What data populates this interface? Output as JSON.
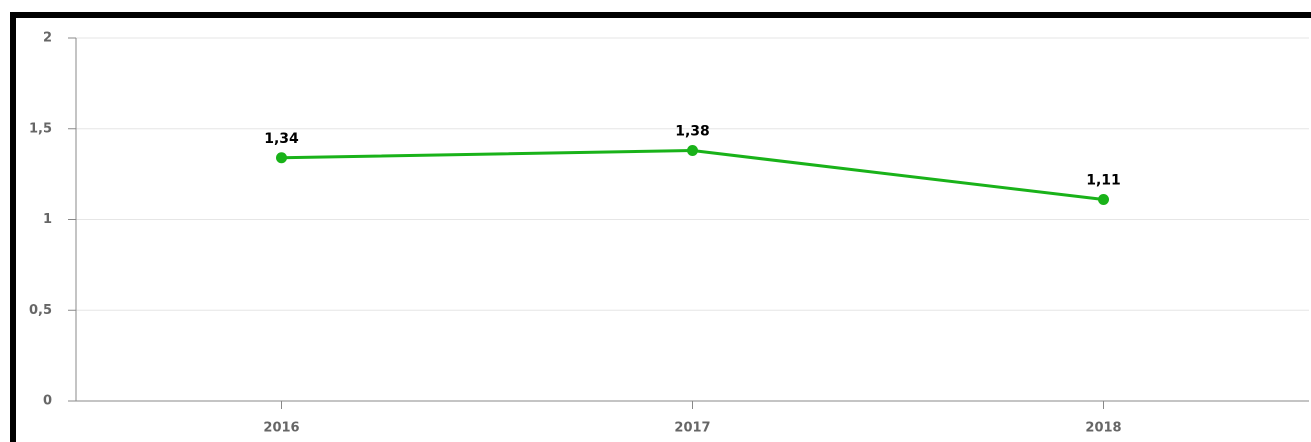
{
  "chart_data": {
    "type": "line",
    "categories": [
      "2016",
      "2017",
      "2018"
    ],
    "series": [
      {
        "color": "#19b219",
        "values": [
          1.34,
          1.38,
          1.11
        ],
        "value_labels": [
          "1,34",
          "1,38",
          "1,11"
        ]
      }
    ],
    "ylim": [
      0,
      2
    ],
    "yticks": [
      0,
      {
        "value": 0.5,
        "label": "0,5"
      },
      1,
      {
        "value": 1.5,
        "label": "1,5"
      },
      2
    ],
    "grid": true
  }
}
